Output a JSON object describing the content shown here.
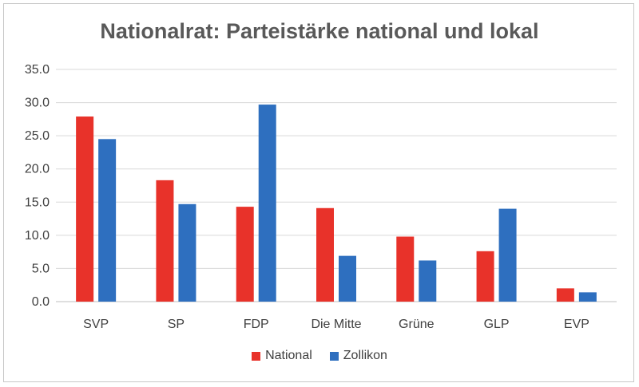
{
  "chart_data": {
    "type": "bar",
    "title": "Nationalrat: Parteistärke national und lokal",
    "categories": [
      "SVP",
      "SP",
      "FDP",
      "Die Mitte",
      "Grüne",
      "GLP",
      "EVP"
    ],
    "series": [
      {
        "name": "National",
        "color": "#e8322a",
        "values": [
          27.9,
          18.3,
          14.3,
          14.1,
          9.8,
          7.6,
          2.0
        ]
      },
      {
        "name": "Zollikon",
        "color": "#2e6fbf",
        "values": [
          24.5,
          14.7,
          29.7,
          6.9,
          6.2,
          14.0,
          1.4
        ]
      }
    ],
    "ylim": [
      0,
      35
    ],
    "yticks": [
      "0.0",
      "5.0",
      "10.0",
      "15.0",
      "20.0",
      "25.0",
      "30.0",
      "35.0"
    ],
    "grid": true,
    "legend": "bottom"
  }
}
